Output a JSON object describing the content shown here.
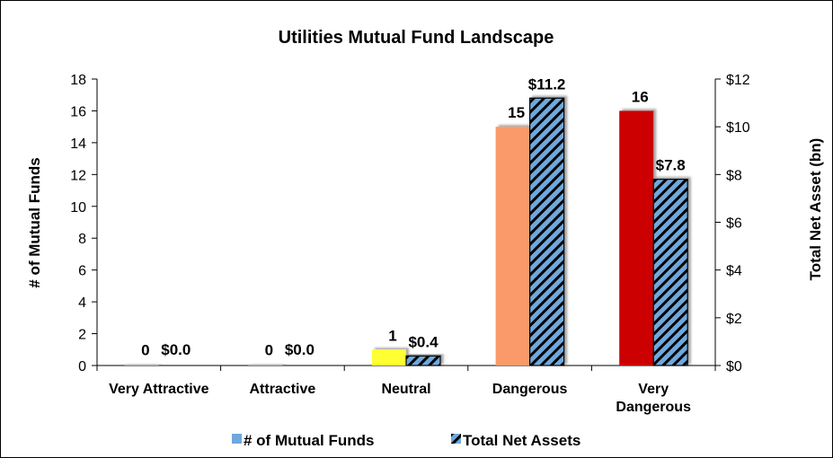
{
  "chart_data": {
    "type": "bar",
    "title": "Utilities Mutual Fund Landscape",
    "categories": [
      [
        "Very Attractive"
      ],
      [
        "Attractive"
      ],
      [
        "Neutral"
      ],
      [
        "Dangerous"
      ],
      [
        "Very",
        "Dangerous"
      ]
    ],
    "series": [
      {
        "name": "# of Mutual Funds",
        "axis": "left",
        "values": [
          0,
          0,
          1,
          15,
          16
        ],
        "labels": [
          "0",
          "0",
          "1",
          "15",
          "16"
        ],
        "colors": [
          "#bfbfbf",
          "#bfbfbf",
          "#ffff33",
          "#fa9a6b",
          "#cc0000"
        ],
        "legend_color": "#6fa8dc"
      },
      {
        "name": "Total Net Assets",
        "axis": "right",
        "values": [
          0.0,
          0.0,
          0.4,
          11.2,
          7.8
        ],
        "labels": [
          "$0.0",
          "$0.0",
          "$0.4",
          "$11.2",
          "$7.8"
        ],
        "fill": "#6fa8dc",
        "hatch": "#000000"
      }
    ],
    "ylabel": "# of Mutual Funds",
    "ylim": [
      0,
      18
    ],
    "yticks": [
      "0",
      "2",
      "4",
      "6",
      "8",
      "10",
      "12",
      "14",
      "16",
      "18"
    ],
    "y2label": "Total Net Asset (bn)",
    "y2lim": [
      0,
      12
    ],
    "y2ticks": [
      "$0",
      "$2",
      "$4",
      "$6",
      "$8",
      "$10",
      "$12"
    ],
    "grid": false,
    "legend_position": "bottom"
  }
}
